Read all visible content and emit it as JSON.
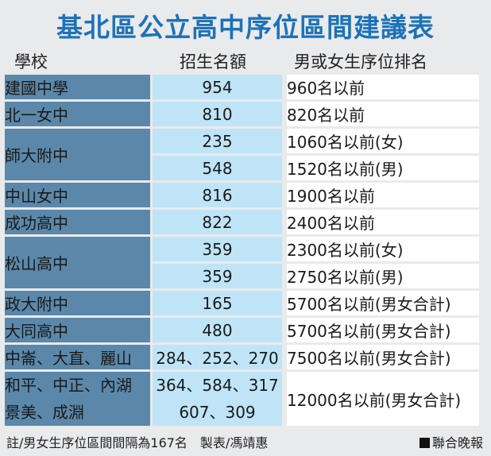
{
  "title": "基北區公立高中序位區間建議表",
  "headers": {
    "school": "學校",
    "quota": "招生名額",
    "rank": "男或女生序位排名"
  },
  "rows": [
    {
      "school": "建國中學",
      "quota": "954",
      "rank": "960名以前"
    },
    {
      "school": "北一女中",
      "quota": "810",
      "rank": "820名以前"
    },
    {
      "school": "師大附中",
      "quota": "235",
      "rank": "1060名以前(女)",
      "quota2": "548",
      "rank2": "1520名以前(男)"
    },
    {
      "school": "中山女中",
      "quota": "816",
      "rank": "1900名以前"
    },
    {
      "school": "成功高中",
      "quota": "822",
      "rank": "2400名以前"
    },
    {
      "school": "松山高中",
      "quota": "359",
      "rank": "2300名以前(女)",
      "quota2": "359",
      "rank2": "2750名以前(男)"
    },
    {
      "school": "政大附中",
      "quota": "165",
      "rank": "5700名以前(男女合計)"
    },
    {
      "school": "大同高中",
      "quota": "480",
      "rank": "5700名以前(男女合計)"
    },
    {
      "school": "中崙、大直、麗山",
      "quota": "284、252、270",
      "rank": "7500名以前(男女合計)"
    },
    {
      "school_line1": "和平、中正、內湖",
      "school_line2": "景美、成淵",
      "quota_line1": "364、584、317",
      "quota_line2": "607、309",
      "rank": "12000名以前(男女合計)"
    }
  ],
  "footer": "註/男女生序位區間間隔為167名　製表/馮靖惠",
  "brand": "聯合晚報"
}
